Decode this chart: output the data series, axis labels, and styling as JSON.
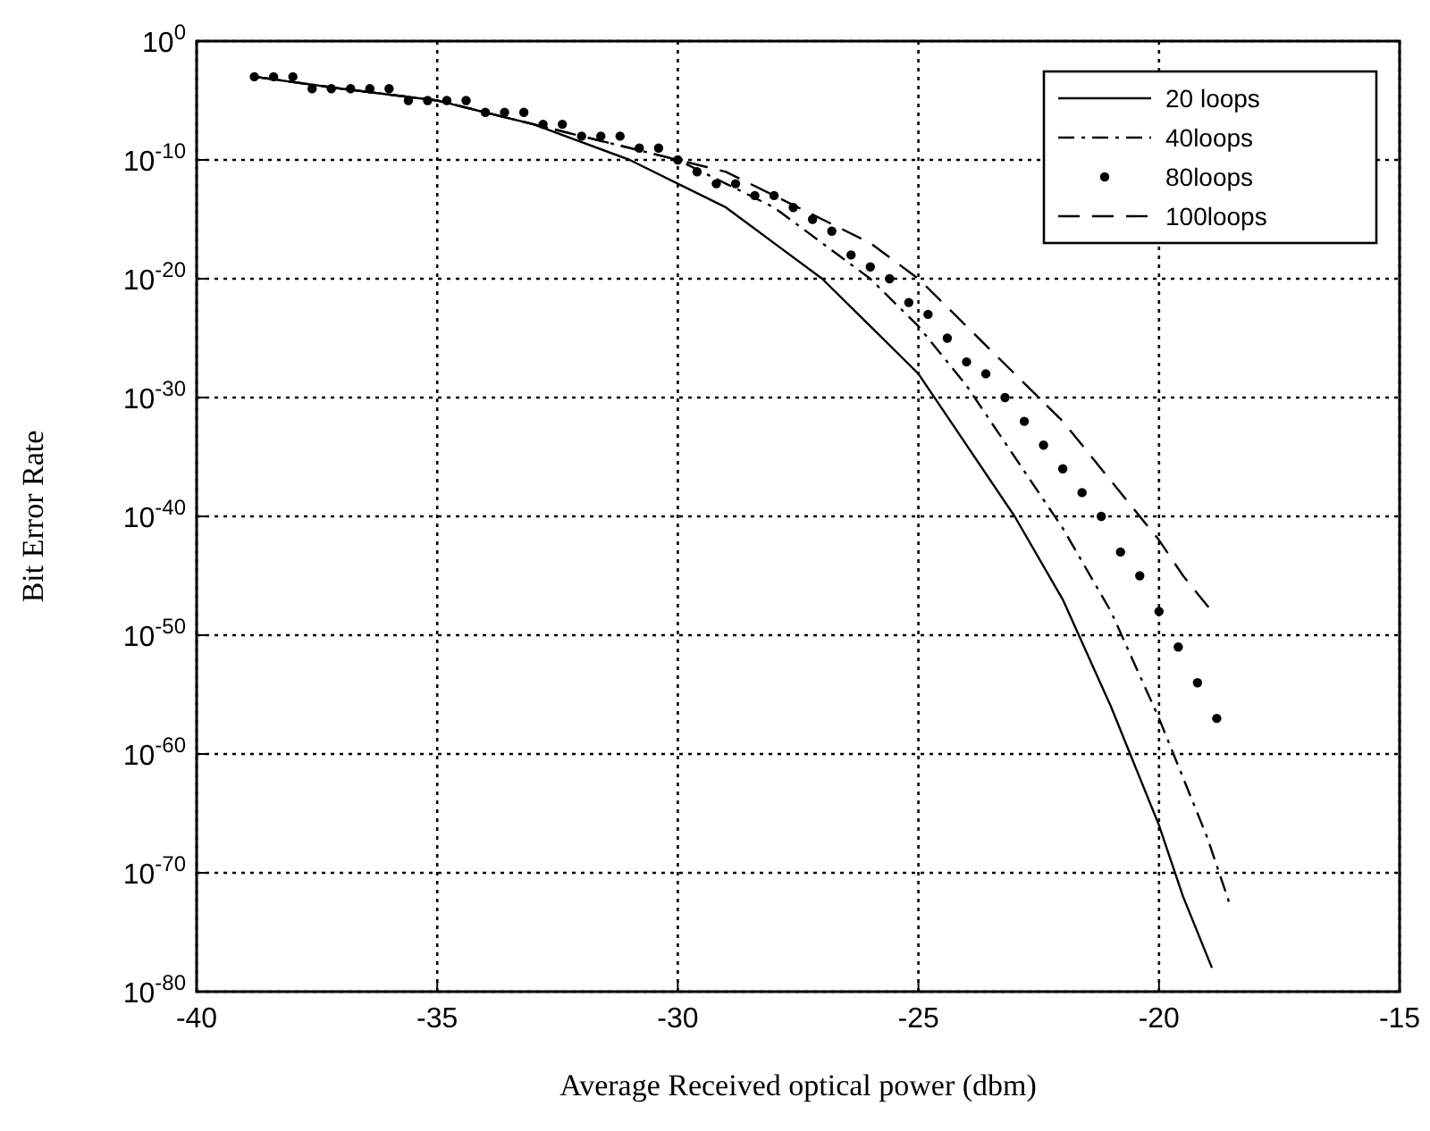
{
  "chart_data": {
    "type": "line",
    "xlabel": "Average Received optical power (dbm)",
    "ylabel": "Bit Error Rate",
    "log": "y",
    "grid": true,
    "legend": "top right",
    "xlim": [
      -40,
      -15
    ],
    "xticks": [
      -40,
      -35,
      -30,
      -25,
      -20,
      -15
    ],
    "ylim": [
      1e-80,
      1
    ],
    "yticks": [
      {
        "value": 1e-80,
        "label": "10$^{-80}$"
      },
      {
        "value": 1e-70,
        "label": "10$^{-70}$"
      },
      {
        "value": 1e-60,
        "label": "10$^{-60}$"
      },
      {
        "value": 1e-50,
        "label": "10$^{-50}$"
      },
      {
        "value": 1e-40,
        "label": "10$^{-40}$"
      },
      {
        "value": 1e-30,
        "label": "10$^{-30}$"
      },
      {
        "value": 1e-20,
        "label": "10$^{-20}$"
      },
      {
        "value": 1e-10,
        "label": "10$^{-10}$"
      },
      {
        "value": 1,
        "label": "10$^{0}$"
      }
    ],
    "series": [
      {
        "name": "20 loops",
        "color": "#000000",
        "line_style": "solid",
        "marker": "none",
        "x": [
          -38.8,
          -37,
          -35,
          -33,
          -31,
          -30,
          -29,
          -28,
          -27,
          -26,
          -25,
          -24,
          -23,
          -22,
          -21,
          -20,
          -19.5,
          -18.9
        ],
        "values": [
          0.001,
          0.0001,
          1e-05,
          1e-07,
          1e-10,
          1e-12,
          1e-14,
          1e-17,
          1e-20,
          1e-24,
          1e-28,
          1e-34,
          1e-40,
          1e-47,
          1e-56,
          1e-66,
          1e-72,
          1e-78
        ]
      },
      {
        "name": "40loops",
        "color": "#000000",
        "line_style": "dashdot",
        "marker": "none",
        "x": [
          -38.8,
          -37,
          -35,
          -33,
          -31,
          -30,
          -29,
          -28,
          -27,
          -26,
          -25,
          -24,
          -23,
          -22,
          -21,
          -20,
          -19,
          -18.5
        ],
        "values": [
          0.001,
          0.0001,
          1e-05,
          1e-07,
          1e-09,
          1e-10,
          1e-12,
          1e-14,
          1e-17,
          1e-20,
          1e-24,
          1e-29,
          1e-35,
          1e-41,
          1e-48,
          1e-57,
          1e-67,
          1e-73
        ]
      },
      {
        "name": "80loops",
        "color": "#000000",
        "type": "scatter",
        "marker": "circle",
        "x": [
          -38.8,
          -38.4,
          -38,
          -37.6,
          -37.2,
          -36.8,
          -36.4,
          -36,
          -35.6,
          -35.2,
          -34.8,
          -34.4,
          -34,
          -33.6,
          -33.2,
          -32.8,
          -32.4,
          -32,
          -31.6,
          -31.2,
          -30.8,
          -30.4,
          -30,
          -29.6,
          -29.2,
          -28.8,
          -28.4,
          -28,
          -27.6,
          -27.2,
          -26.8,
          -26.4,
          -26,
          -25.6,
          -25.2,
          -24.8,
          -24.4,
          -24,
          -23.6,
          -23.2,
          -22.8,
          -22.4,
          -22,
          -21.6,
          -21.2,
          -20.8,
          -20.4,
          -20,
          -19.6,
          -19.2,
          -18.8
        ],
        "values": [
          0.001,
          0.001,
          0.001,
          0.0001,
          0.0001,
          0.0001,
          0.0001,
          0.0001,
          1e-05,
          1e-05,
          1e-05,
          1e-05,
          1e-06,
          1e-06,
          1e-06,
          1e-07,
          1e-07,
          1e-08,
          1e-08,
          1e-08,
          1e-09,
          1e-09,
          1e-10,
          1e-11,
          1e-12,
          1e-12,
          1e-13,
          1e-13,
          1e-14,
          1e-15,
          1e-16,
          1e-18,
          1e-19,
          1e-20,
          1e-22,
          1e-23,
          1e-25,
          1e-27,
          1e-28,
          1e-30,
          1e-32,
          1e-34,
          1e-36,
          1e-38,
          1e-40,
          1e-43,
          1e-45,
          1e-48,
          1e-51,
          1e-54,
          1e-57
        ]
      },
      {
        "name": "100loops",
        "color": "#000000",
        "line_style": "dashed",
        "marker": "none",
        "x": [
          -38.8,
          -37,
          -35,
          -33,
          -31,
          -30,
          -29,
          -28,
          -27,
          -26,
          -25,
          -24,
          -23,
          -22,
          -21,
          -20,
          -19.5,
          -18.9
        ],
        "values": [
          0.001,
          0.0001,
          1e-05,
          1e-07,
          1e-09,
          1e-10,
          1e-11,
          1e-13,
          1e-15,
          1e-17,
          1e-20,
          1e-24,
          1e-28,
          1e-32,
          1e-37,
          1e-42,
          1e-45,
          1e-48
        ]
      }
    ]
  }
}
